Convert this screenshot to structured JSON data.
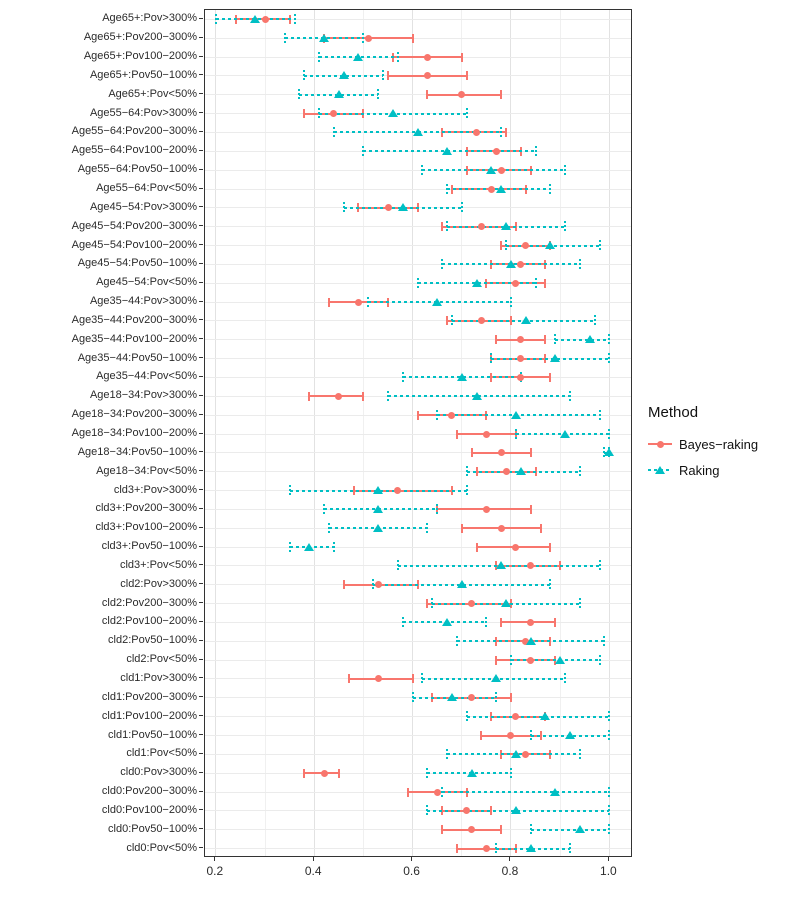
{
  "chart_data": {
    "type": "scatter",
    "subtype": "horizontal_dot_with_error_bars",
    "title": "",
    "xlabel": "",
    "ylabel": "",
    "x_ticks": [
      0.2,
      0.4,
      0.6,
      0.8,
      1.0
    ],
    "x_tick_labels": [
      "0.2",
      "0.4",
      "0.6",
      "0.8",
      "1.0"
    ],
    "x_minor_ticks": [
      0.3,
      0.5,
      0.7,
      0.9
    ],
    "xlim": [
      0.178,
      1.048
    ],
    "grid": true,
    "legend": {
      "title": "Method",
      "position": "right",
      "entries": [
        {
          "label": "Bayes−raking",
          "color": "#F8766D",
          "marker": "circle",
          "linestyle": "solid"
        },
        {
          "label": "Raking",
          "color": "#00BFC4",
          "marker": "triangle",
          "linestyle": "dashed"
        }
      ]
    },
    "value_format": [
      "estimate",
      "ci_low",
      "ci_high"
    ],
    "categories": [
      "Age65+:Pov>300%",
      "Age65+:Pov200−300%",
      "Age65+:Pov100−200%",
      "Age65+:Pov50−100%",
      "Age65+:Pov<50%",
      "Age55−64:Pov>300%",
      "Age55−64:Pov200−300%",
      "Age55−64:Pov100−200%",
      "Age55−64:Pov50−100%",
      "Age55−64:Pov<50%",
      "Age45−54:Pov>300%",
      "Age45−54:Pov200−300%",
      "Age45−54:Pov100−200%",
      "Age45−54:Pov50−100%",
      "Age45−54:Pov<50%",
      "Age35−44:Pov>300%",
      "Age35−44:Pov200−300%",
      "Age35−44:Pov100−200%",
      "Age35−44:Pov50−100%",
      "Age35−44:Pov<50%",
      "Age18−34:Pov>300%",
      "Age18−34:Pov200−300%",
      "Age18−34:Pov100−200%",
      "Age18−34:Pov50−100%",
      "Age18−34:Pov<50%",
      "cld3+:Pov>300%",
      "cld3+:Pov200−300%",
      "cld3+:Pov100−200%",
      "cld3+:Pov50−100%",
      "cld3+:Pov<50%",
      "cld2:Pov>300%",
      "cld2:Pov200−300%",
      "cld2:Pov100−200%",
      "cld2:Pov50−100%",
      "cld2:Pov<50%",
      "cld1:Pov>300%",
      "cld1:Pov200−300%",
      "cld1:Pov100−200%",
      "cld1:Pov50−100%",
      "cld1:Pov<50%",
      "cld0:Pov>300%",
      "cld0:Pov200−300%",
      "cld0:Pov100−200%",
      "cld0:Pov50−100%",
      "cld0:Pov<50%"
    ],
    "series": [
      {
        "name": "Bayes−raking",
        "color": "#F8766D",
        "marker": "circle",
        "linestyle": "solid",
        "values": [
          [
            0.3,
            0.24,
            0.35
          ],
          [
            0.51,
            0.42,
            0.6
          ],
          [
            0.63,
            0.56,
            0.7
          ],
          [
            0.63,
            0.55,
            0.71
          ],
          [
            0.7,
            0.63,
            0.78
          ],
          [
            0.44,
            0.38,
            0.5
          ],
          [
            0.73,
            0.66,
            0.79
          ],
          [
            0.77,
            0.71,
            0.82
          ],
          [
            0.78,
            0.71,
            0.84
          ],
          [
            0.76,
            0.68,
            0.83
          ],
          [
            0.55,
            0.49,
            0.61
          ],
          [
            0.74,
            0.66,
            0.81
          ],
          [
            0.83,
            0.78,
            0.88
          ],
          [
            0.82,
            0.76,
            0.87
          ],
          [
            0.81,
            0.75,
            0.87
          ],
          [
            0.49,
            0.43,
            0.55
          ],
          [
            0.74,
            0.67,
            0.8
          ],
          [
            0.82,
            0.77,
            0.87
          ],
          [
            0.82,
            0.76,
            0.87
          ],
          [
            0.82,
            0.76,
            0.88
          ],
          [
            0.45,
            0.39,
            0.5
          ],
          [
            0.68,
            0.61,
            0.75
          ],
          [
            0.75,
            0.69,
            0.81
          ],
          [
            0.78,
            0.72,
            0.84
          ],
          [
            0.79,
            0.73,
            0.85
          ],
          [
            0.57,
            0.48,
            0.68
          ],
          [
            0.75,
            0.65,
            0.84
          ],
          [
            0.78,
            0.7,
            0.86
          ],
          [
            0.81,
            0.73,
            0.88
          ],
          [
            0.84,
            0.77,
            0.9
          ],
          [
            0.53,
            0.46,
            0.61
          ],
          [
            0.72,
            0.63,
            0.8
          ],
          [
            0.84,
            0.78,
            0.89
          ],
          [
            0.83,
            0.77,
            0.88
          ],
          [
            0.84,
            0.77,
            0.89
          ],
          [
            0.53,
            0.47,
            0.6
          ],
          [
            0.72,
            0.64,
            0.8
          ],
          [
            0.81,
            0.76,
            0.87
          ],
          [
            0.8,
            0.74,
            0.86
          ],
          [
            0.83,
            0.78,
            0.88
          ],
          [
            0.42,
            0.38,
            0.45
          ],
          [
            0.65,
            0.59,
            0.71
          ],
          [
            0.71,
            0.66,
            0.76
          ],
          [
            0.72,
            0.66,
            0.78
          ],
          [
            0.75,
            0.69,
            0.81
          ]
        ]
      },
      {
        "name": "Raking",
        "color": "#00BFC4",
        "marker": "triangle",
        "linestyle": "dashed",
        "values": [
          [
            0.28,
            0.2,
            0.36
          ],
          [
            0.42,
            0.34,
            0.5
          ],
          [
            0.49,
            0.41,
            0.57
          ],
          [
            0.46,
            0.38,
            0.54
          ],
          [
            0.45,
            0.37,
            0.53
          ],
          [
            0.56,
            0.41,
            0.71
          ],
          [
            0.61,
            0.44,
            0.78
          ],
          [
            0.67,
            0.5,
            0.85
          ],
          [
            0.76,
            0.62,
            0.91
          ],
          [
            0.78,
            0.67,
            0.88
          ],
          [
            0.58,
            0.46,
            0.7
          ],
          [
            0.79,
            0.67,
            0.91
          ],
          [
            0.88,
            0.79,
            0.98
          ],
          [
            0.8,
            0.66,
            0.94
          ],
          [
            0.73,
            0.61,
            0.85
          ],
          [
            0.65,
            0.51,
            0.8
          ],
          [
            0.83,
            0.68,
            0.97
          ],
          [
            0.96,
            0.89,
            1.0
          ],
          [
            0.89,
            0.76,
            1.0
          ],
          [
            0.7,
            0.58,
            0.82
          ],
          [
            0.73,
            0.55,
            0.92
          ],
          [
            0.81,
            0.65,
            0.98
          ],
          [
            0.91,
            0.81,
            1.0
          ],
          [
            1.0,
            0.99,
            1.0
          ],
          [
            0.82,
            0.71,
            0.94
          ],
          [
            0.53,
            0.35,
            0.71
          ],
          [
            0.53,
            0.42,
            0.65
          ],
          [
            0.53,
            0.43,
            0.63
          ],
          [
            0.39,
            0.35,
            0.44
          ],
          [
            0.78,
            0.57,
            0.98
          ],
          [
            0.7,
            0.52,
            0.88
          ],
          [
            0.79,
            0.64,
            0.94
          ],
          [
            0.67,
            0.58,
            0.75
          ],
          [
            0.84,
            0.69,
            0.99
          ],
          [
            0.9,
            0.8,
            0.98
          ],
          [
            0.77,
            0.62,
            0.91
          ],
          [
            0.68,
            0.6,
            0.77
          ],
          [
            0.87,
            0.71,
            1.0
          ],
          [
            0.92,
            0.84,
            1.0
          ],
          [
            0.81,
            0.67,
            0.94
          ],
          [
            0.72,
            0.63,
            0.8
          ],
          [
            0.89,
            0.66,
            1.0
          ],
          [
            0.81,
            0.63,
            1.0
          ],
          [
            0.94,
            0.84,
            1.0
          ],
          [
            0.84,
            0.77,
            0.92
          ]
        ]
      }
    ]
  }
}
